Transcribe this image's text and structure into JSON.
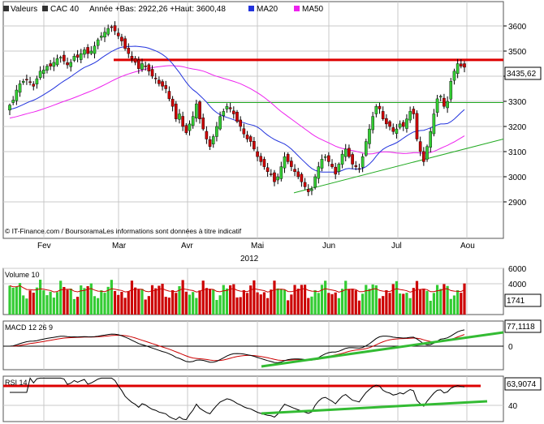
{
  "legend": {
    "valeurs": "Valeurs",
    "instrument": "CAC 40",
    "range_text": "Année +Bas: 2922,26 +Haut: 3600,48",
    "ma20": "MA20",
    "ma50": "MA50"
  },
  "colors": {
    "up": "#33cc33",
    "down": "#cc0000",
    "ma20": "#2233dd",
    "ma50": "#ee22ee",
    "resistance": "#dd0000",
    "support": "#22aa22",
    "grid": "#c8c8c8",
    "macd": "#000000",
    "signal": "#cc0000",
    "trend": "#33bb33"
  },
  "credit": "© IT-Finance.com / BoursoramaLes informations sont données à titre indicatif",
  "chart_data": [
    {
      "type": "candlestick",
      "instrument": "CAC 40",
      "ylim": [
        2880,
        3660
      ],
      "yticks": [
        2900,
        3000,
        3100,
        3200,
        3300,
        3400,
        3500,
        3600
      ],
      "months": [
        "Fev",
        "Mar",
        "Avr",
        "Mai",
        "Jun",
        "Jul",
        "Aou"
      ],
      "year": "2012",
      "last_value": "3435,62",
      "year_low": 2922.26,
      "year_high": 3600.48,
      "resistance": 3465,
      "support": 3295,
      "trendline": [
        [
          2936,
          3150
        ]
      ],
      "closes": [
        3285,
        3305,
        3345,
        3370,
        3380,
        3385,
        3375,
        3360,
        3390,
        3420,
        3425,
        3440,
        3440,
        3455,
        3470,
        3475,
        3460,
        3445,
        3455,
        3480,
        3475,
        3490,
        3505,
        3490,
        3500,
        3520,
        3545,
        3560,
        3575,
        3590,
        3595,
        3580,
        3560,
        3540,
        3510,
        3490,
        3470,
        3455,
        3430,
        3450,
        3440,
        3420,
        3400,
        3390,
        3370,
        3360,
        3350,
        3310,
        3280,
        3230,
        3250,
        3200,
        3175,
        3210,
        3240,
        3290,
        3230,
        3190,
        3150,
        3120,
        3160,
        3200,
        3240,
        3260,
        3280,
        3270,
        3250,
        3220,
        3200,
        3170,
        3150,
        3140,
        3110,
        3080,
        3060,
        3040,
        3020,
        3010,
        2980,
        3000,
        3040,
        3080,
        3060,
        3040,
        3020,
        3000,
        2980,
        2960,
        2940,
        2950,
        3000,
        3040,
        3070,
        3080,
        3060,
        3040,
        3010,
        3050,
        3090,
        3110,
        3080,
        3050,
        3040,
        3030,
        3080,
        3140,
        3190,
        3240,
        3280,
        3270,
        3230,
        3210,
        3200,
        3180,
        3190,
        3210,
        3200,
        3230,
        3260,
        3250,
        3150,
        3100,
        3060,
        3120,
        3180,
        3250,
        3310,
        3320,
        3280,
        3300,
        3380,
        3420,
        3450,
        3440,
        3435.62
      ],
      "ma20_start": 3250,
      "ma50_start": 3180,
      "ma20_end": 3285,
      "ma50_end": 3175
    },
    {
      "type": "bar",
      "title": "Volume 10",
      "ylim": [
        0,
        6000
      ],
      "yticks": [
        4000,
        6000
      ],
      "last_value": "1741",
      "volume_avg": 3150
    },
    {
      "type": "line",
      "title": "MACD 12 26 9",
      "last_value": "77,1118",
      "yticks": [
        0
      ],
      "ylim": [
        -120,
        110
      ]
    },
    {
      "type": "line",
      "title": "RSI 14",
      "last_value": "63,9074",
      "yticks": [
        40
      ],
      "ylim": [
        15,
        85
      ],
      "overbought": 70
    }
  ]
}
